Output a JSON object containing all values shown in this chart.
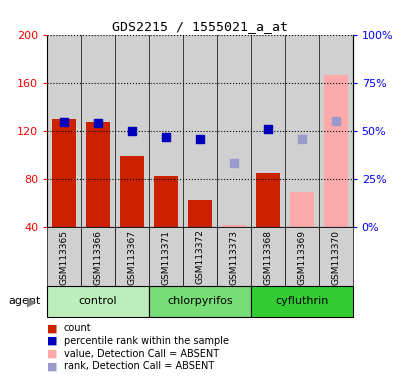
{
  "title": "GDS2215 / 1555021_a_at",
  "samples": [
    "GSM113365",
    "GSM113366",
    "GSM113367",
    "GSM113371",
    "GSM113372",
    "GSM113373",
    "GSM113368",
    "GSM113369",
    "GSM113370"
  ],
  "bar_values": [
    130,
    127,
    99,
    82,
    62,
    null,
    85,
    null,
    null
  ],
  "bar_absent": [
    null,
    null,
    null,
    null,
    null,
    41,
    null,
    69,
    166
  ],
  "rank_present": [
    127,
    126,
    120,
    115,
    113,
    null,
    121,
    null,
    null
  ],
  "rank_absent": [
    null,
    null,
    null,
    null,
    null,
    93,
    null,
    113,
    128
  ],
  "ylim_left": [
    40,
    200
  ],
  "ylim_right": [
    0,
    100
  ],
  "yticks_left": [
    40,
    80,
    120,
    160,
    200
  ],
  "yticks_right": [
    0,
    25,
    50,
    75,
    100
  ],
  "bar_color_present": "#cc2200",
  "bar_color_absent": "#ffaaaa",
  "dot_color_present": "#0000bb",
  "dot_color_absent": "#9999cc",
  "bg_sample_color": "#d0d0d0",
  "group_colors": [
    "#bbeebb",
    "#77dd77",
    "#33cc33"
  ],
  "group_labels": [
    "control",
    "chlorpyrifos",
    "cyfluthrin"
  ],
  "group_ranges": [
    [
      0,
      3
    ],
    [
      3,
      6
    ],
    [
      6,
      9
    ]
  ],
  "legend_items": [
    {
      "color": "#cc2200",
      "label": "count"
    },
    {
      "color": "#0000bb",
      "label": "percentile rank within the sample"
    },
    {
      "color": "#ffaaaa",
      "label": "value, Detection Call = ABSENT"
    },
    {
      "color": "#9999cc",
      "label": "rank, Detection Call = ABSENT"
    }
  ],
  "xlabel_agent": "agent",
  "agent_arrow": "▶"
}
